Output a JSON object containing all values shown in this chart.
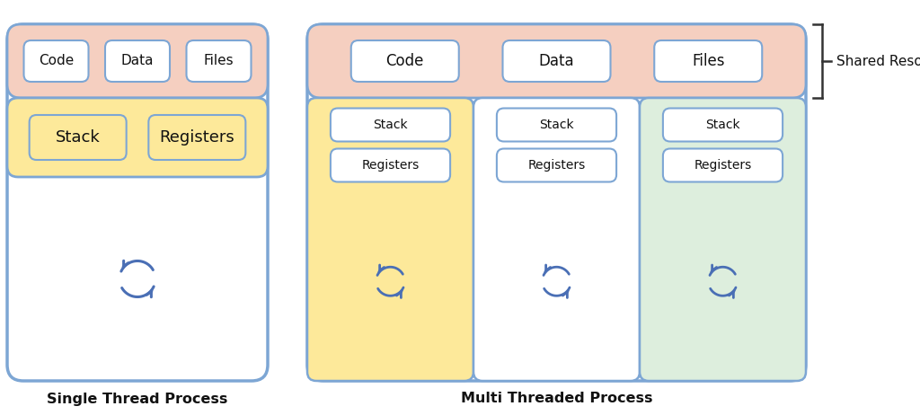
{
  "bg_color": "#ffffff",
  "border_color": "#7da6d4",
  "shared_bg": "#f5cfc0",
  "thread1_bg": "#fde99a",
  "thread2_bg": "#ffffff",
  "thread3_bg": "#ddeedd",
  "box_border": "#7da6d4",
  "arrow_color": "#4a6fb5",
  "label_color": "#111111",
  "title_color": "#111111",
  "single_label": "Single Thread Process",
  "multi_label": "Multi Threaded Process",
  "shared_resources_label": "Shared Resources",
  "shared_items": [
    "Code",
    "Data",
    "Files"
  ],
  "thread_items": [
    "Stack",
    "Registers"
  ]
}
